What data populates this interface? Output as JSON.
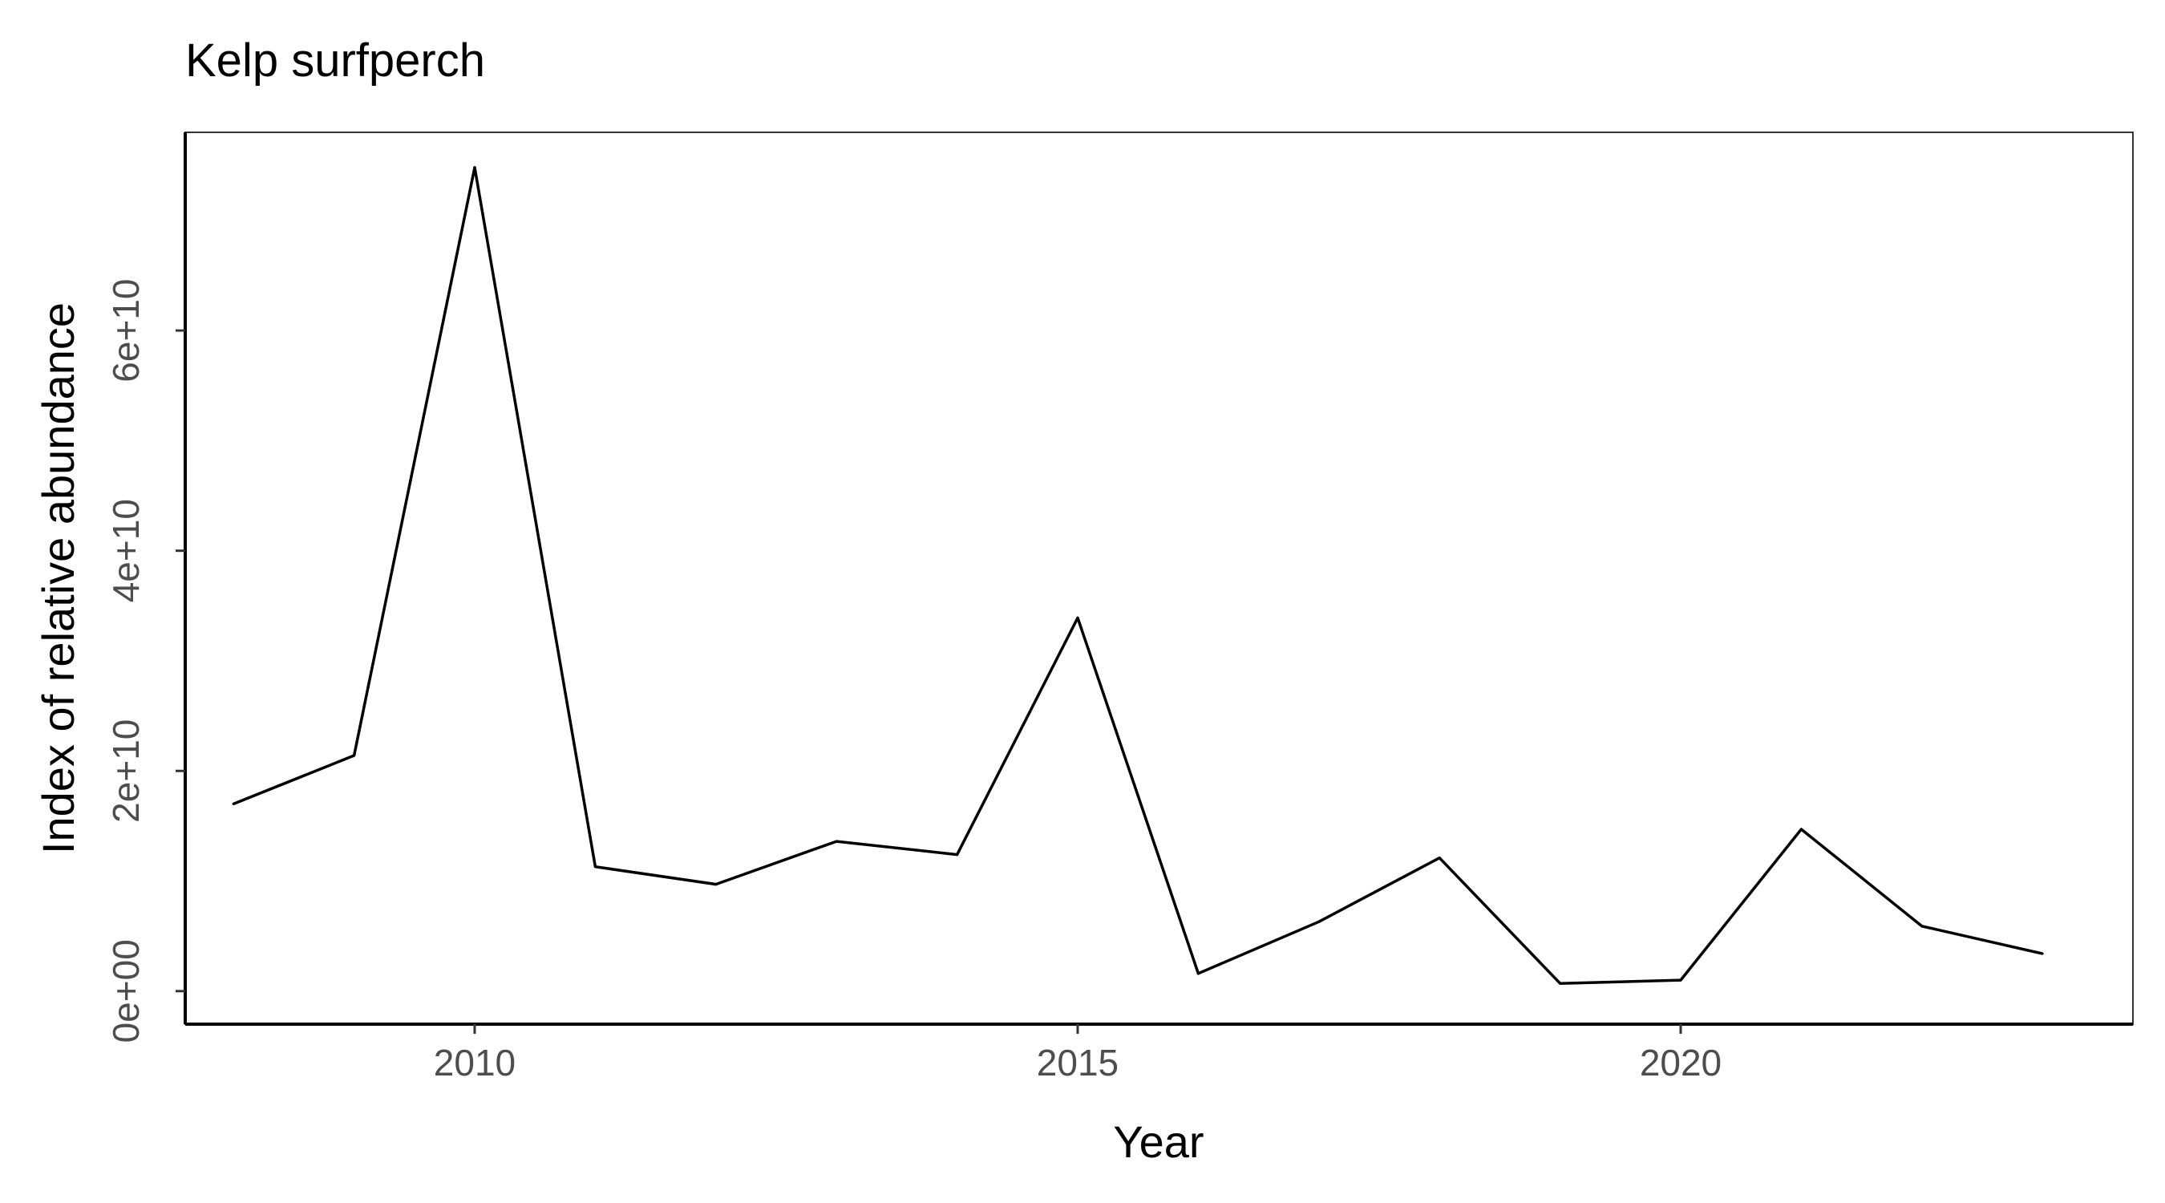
{
  "chart_data": {
    "type": "line",
    "title": "Kelp surfperch",
    "xlabel": "Year",
    "ylabel": "Index of relative abundance",
    "x": [
      2008,
      2009,
      2010,
      2011,
      2012,
      2013,
      2014,
      2015,
      2016,
      2017,
      2018,
      2019,
      2020,
      2021,
      2022,
      2023
    ],
    "series": [
      {
        "values": [
          17000000000,
          21400000000,
          74800000000,
          11300000000,
          9700000000,
          13600000000,
          12400000000,
          33900000000,
          1600000000,
          6300000000,
          12100000000,
          700000000,
          1000000000,
          14700000000,
          5900000000,
          3400000000
        ]
      }
    ],
    "xlim": [
      2007.6,
      2023.75
    ],
    "ylim": [
      -3000000000,
      78000000000
    ],
    "x_ticks": [
      {
        "value": 2010,
        "label": "2010"
      },
      {
        "value": 2015,
        "label": "2015"
      },
      {
        "value": 2020,
        "label": "2020"
      }
    ],
    "y_ticks": [
      {
        "value": 0,
        "label": "0e+00"
      },
      {
        "value": 20000000000,
        "label": "2e+10"
      },
      {
        "value": 40000000000,
        "label": "4e+10"
      },
      {
        "value": 60000000000,
        "label": "6e+10"
      }
    ],
    "grid": false,
    "line_color": "#000000"
  }
}
